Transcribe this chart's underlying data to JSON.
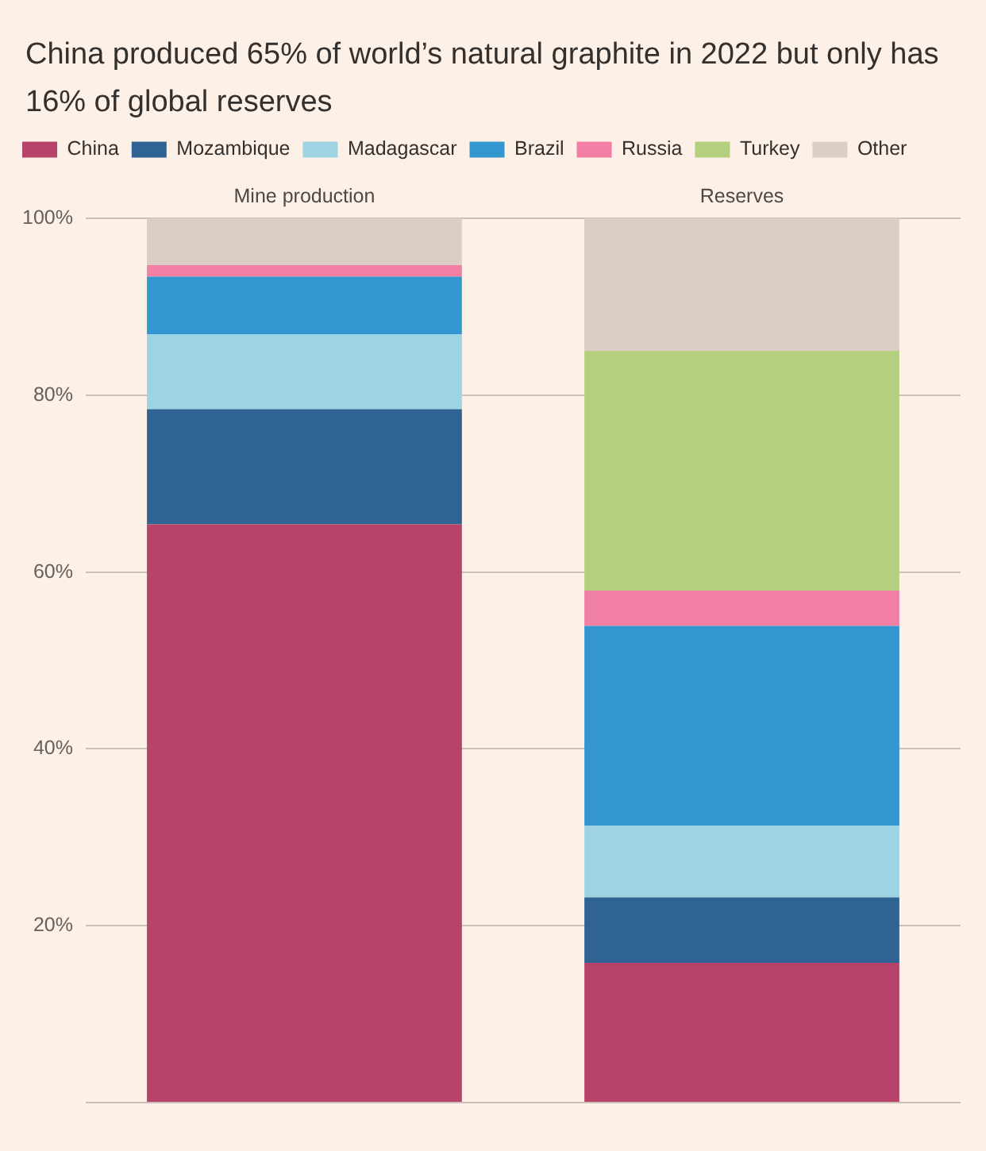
{
  "chart_data": {
    "type": "bar",
    "title": "China produced 65% of world’s natural graphite in 2022 but only has 16% of global reserves",
    "categories": [
      "Mine production",
      "Reserves"
    ],
    "stacked": true,
    "legend": "top left",
    "grid": "y",
    "series": [
      {
        "name": "China",
        "color": "#b8436a",
        "values": [
          65.4,
          15.8
        ]
      },
      {
        "name": "Mozambique",
        "color": "#2e6393",
        "values": [
          13.0,
          7.4
        ]
      },
      {
        "name": "Madagascar",
        "color": "#9dd3e3",
        "values": [
          8.5,
          8.1
        ]
      },
      {
        "name": "Brazil",
        "color": "#3496cf",
        "values": [
          6.5,
          22.6
        ]
      },
      {
        "name": "Russia",
        "color": "#f17fa6",
        "values": [
          1.3,
          4.0
        ]
      },
      {
        "name": "Turkey",
        "color": "#b4cf7e",
        "values": [
          0,
          27.1
        ]
      },
      {
        "name": "Other",
        "color": "#dccec4",
        "values": [
          5.3,
          15.0
        ]
      }
    ],
    "ylim": [
      0,
      100
    ],
    "yticks": [
      {
        "value": 0,
        "label": null
      },
      {
        "value": 20,
        "label": "20%"
      },
      {
        "value": 40,
        "label": "40%"
      },
      {
        "value": 60,
        "label": "60%"
      },
      {
        "value": 80,
        "label": "80%"
      },
      {
        "value": 100,
        "label": "100%"
      }
    ]
  }
}
